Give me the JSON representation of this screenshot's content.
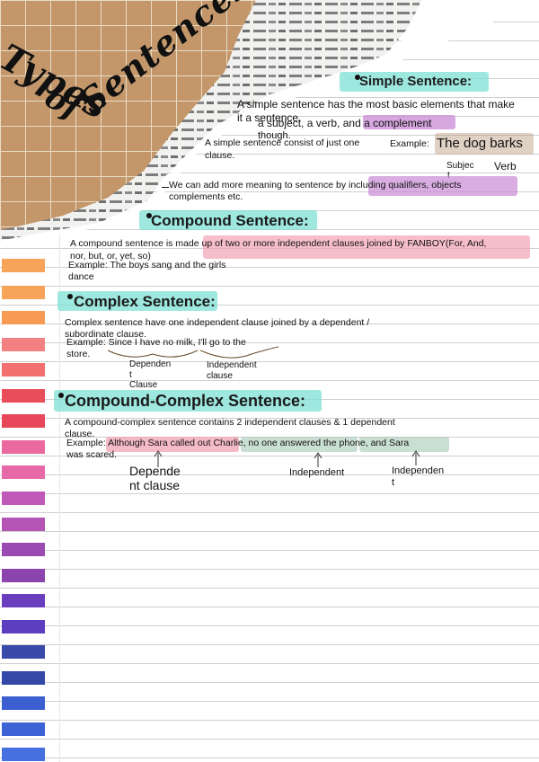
{
  "title": {
    "line1": "Types",
    "line2": "of",
    "line3": "Sentences"
  },
  "simple": {
    "heading": "Simple Sentence:",
    "intro_line1": "A simple sentence has the most basic elements that make",
    "intro_line2": "it a sentence.",
    "intro_line3_a": "a subject, a verb, and ",
    "intro_line3_b": "a complement",
    "though": "though.",
    "consist_line1": "A simple sentence consist of just one",
    "consist_line2": "clause.",
    "example_label": "Example:",
    "example_text": "The dog barks",
    "subject_label": "Subjec",
    "subject_label2": "t",
    "verb_label": "Verb",
    "more_a": "We can add more meaning to sentence by including ",
    "more_b": "qualifiers, objects",
    "more_c": "complements etc."
  },
  "compound": {
    "heading": "Compound Sentence",
    "colon": ":",
    "def_a": "A compound sentence is ma",
    "def_b": "de up of two or more independent clauses joined by FANBOY(For, And,",
    "def_line2": "nor, but, or, yet, so)",
    "example_line1": "Example: The boys sang and the girls",
    "example_line2": "dance"
  },
  "complex": {
    "heading": "Complex Sentence:",
    "def_line1": "Complex sentence have one independent clause joined by a dependent /",
    "def_line2": "subordinate clause.",
    "example_line1": "Example: Since I have no milk, I'll go to the",
    "example_line2": "store.",
    "dep_line1": "Dependen",
    "dep_line2": "t",
    "dep_line3": "Clause",
    "indep_line1": "Independent",
    "indep_line2": "clause"
  },
  "compound_complex": {
    "heading": "Compound-Complex Sentence:",
    "def_line1": "A compound-complex sentence contains 2 independent clauses & 1 dependent",
    "def_line2": "clause.",
    "example_a": "Example: ",
    "example_b": "Although Sara called out Charlie,",
    "example_c": " no one answered the phone, and Sara",
    "example_line2": "was scared.",
    "dep_line1": "Depende",
    "dep_line2": "nt clause",
    "indep1": "Independent",
    "indep2_line1": "Independen",
    "indep2_line2": "t"
  },
  "colors": {
    "cyan": "#7fe0d6",
    "purple": "#c98ad6",
    "pink": "#f2a3b4",
    "brown": "#b9987a",
    "green": "#a7c9b5",
    "kraft": "#c3976a"
  }
}
